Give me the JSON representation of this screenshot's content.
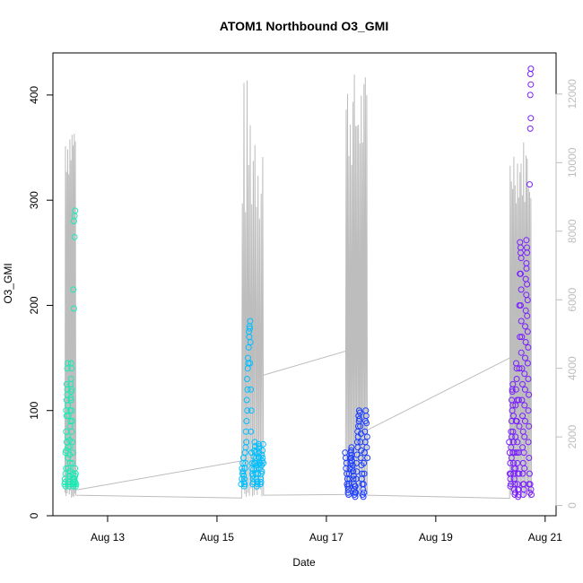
{
  "chart_data": {
    "type": "scatter",
    "title": "ATOM1 Northbound O3_GMI",
    "xlabel": "Date",
    "ylabel": "O3_GMI",
    "x_axis": {
      "ticks": [
        "Aug 13",
        "Aug 15",
        "Aug 17",
        "Aug 19",
        "Aug 21"
      ],
      "tick_days": [
        13,
        15,
        17,
        19,
        21
      ],
      "range_days": [
        12.0,
        21.2
      ]
    },
    "y_left": {
      "ylim": [
        0,
        440
      ],
      "ticks": [
        0,
        100,
        200,
        300,
        400
      ]
    },
    "y_right": {
      "ylim": [
        -300,
        13200
      ],
      "ticks": [
        0,
        2000,
        4000,
        6000,
        8000,
        10000,
        12000
      ],
      "color": "#bdbdbd"
    },
    "grid": false,
    "legend": "none",
    "altitude_color": "#bdbdbd",
    "series": [
      {
        "color": "#1de9b6",
        "t_start": 12.22,
        "t_end": 12.42,
        "o3": [
          30,
          32,
          28,
          35,
          40,
          45,
          60,
          62,
          70,
          80,
          95,
          100,
          110,
          120,
          125,
          140,
          145,
          115,
          105,
          95,
          75,
          65,
          55,
          45,
          35,
          30,
          28,
          32,
          38,
          42,
          50,
          58,
          66,
          72,
          85,
          90,
          100,
          112,
          118,
          125,
          145,
          140,
          130,
          120,
          110,
          100,
          90,
          80,
          70,
          60,
          50,
          40,
          35,
          30,
          28,
          30,
          32,
          35,
          215,
          197,
          265,
          280,
          285,
          290,
          30,
          32,
          35,
          38,
          40,
          45,
          28,
          30
        ]
      },
      {
        "color": "#00bfff",
        "t_start": 15.45,
        "t_end": 15.85,
        "o3": [
          30,
          35,
          40,
          45,
          50,
          55,
          42,
          38,
          35,
          32,
          30,
          28,
          45,
          50,
          60,
          65,
          70,
          80,
          90,
          100,
          110,
          120,
          130,
          140,
          145,
          150,
          160,
          170,
          175,
          180,
          185,
          178,
          165,
          145,
          120,
          100,
          80,
          60,
          50,
          45,
          40,
          35,
          30,
          32,
          38,
          44,
          50,
          56,
          62,
          66,
          70,
          60,
          55,
          50,
          45,
          40,
          35,
          30,
          28,
          32,
          40,
          48,
          56,
          64,
          68,
          66,
          60,
          55,
          50,
          45,
          30,
          32,
          35,
          40,
          42,
          48,
          52,
          58,
          62,
          68,
          55,
          50
        ]
      },
      {
        "color": "#1a3cff",
        "t_start": 17.35,
        "t_end": 17.75,
        "o3": [
          60,
          55,
          50,
          45,
          40,
          35,
          30,
          28,
          25,
          22,
          20,
          25,
          30,
          35,
          40,
          45,
          50,
          55,
          60,
          65,
          62,
          58,
          55,
          52,
          48,
          45,
          42,
          38,
          35,
          30,
          28,
          25,
          22,
          20,
          18,
          22,
          28,
          35,
          42,
          50,
          58,
          65,
          70,
          75,
          80,
          85,
          90,
          95,
          100,
          98,
          92,
          85,
          78,
          70,
          62,
          55,
          48,
          40,
          35,
          30,
          25,
          20,
          18,
          22,
          30,
          40,
          50,
          60,
          70,
          80,
          90,
          95,
          100,
          88,
          75,
          65,
          55
        ]
      },
      {
        "color": "#7a1fff",
        "t_start": 20.35,
        "t_end": 20.75,
        "o3": [
          70,
          60,
          50,
          40,
          35,
          30,
          28,
          40,
          55,
          65,
          75,
          80,
          90,
          100,
          110,
          120,
          125,
          118,
          105,
          95,
          80,
          70,
          60,
          50,
          45,
          40,
          35,
          30,
          25,
          20,
          22,
          30,
          45,
          60,
          75,
          90,
          105,
          120,
          140,
          145,
          130,
          110,
          90,
          70,
          60,
          50,
          40,
          30,
          25,
          20,
          18,
          25,
          40,
          60,
          85,
          110,
          140,
          170,
          200,
          230,
          250,
          260,
          255,
          245,
          230,
          215,
          200,
          185,
          170,
          155,
          140,
          125,
          110,
          95,
          80,
          65,
          50,
          40,
          30,
          25,
          20,
          30,
          45,
          60,
          75,
          90,
          105,
          120,
          135,
          150,
          165,
          180,
          195,
          210,
          225,
          240,
          255,
          262,
          250,
          235,
          220,
          205,
          190,
          175,
          160,
          145,
          130,
          115,
          100,
          85,
          70,
          55,
          40,
          30,
          22,
          30,
          315,
          368,
          378,
          400,
          410,
          420,
          425,
          20,
          25
        ]
      }
    ]
  }
}
